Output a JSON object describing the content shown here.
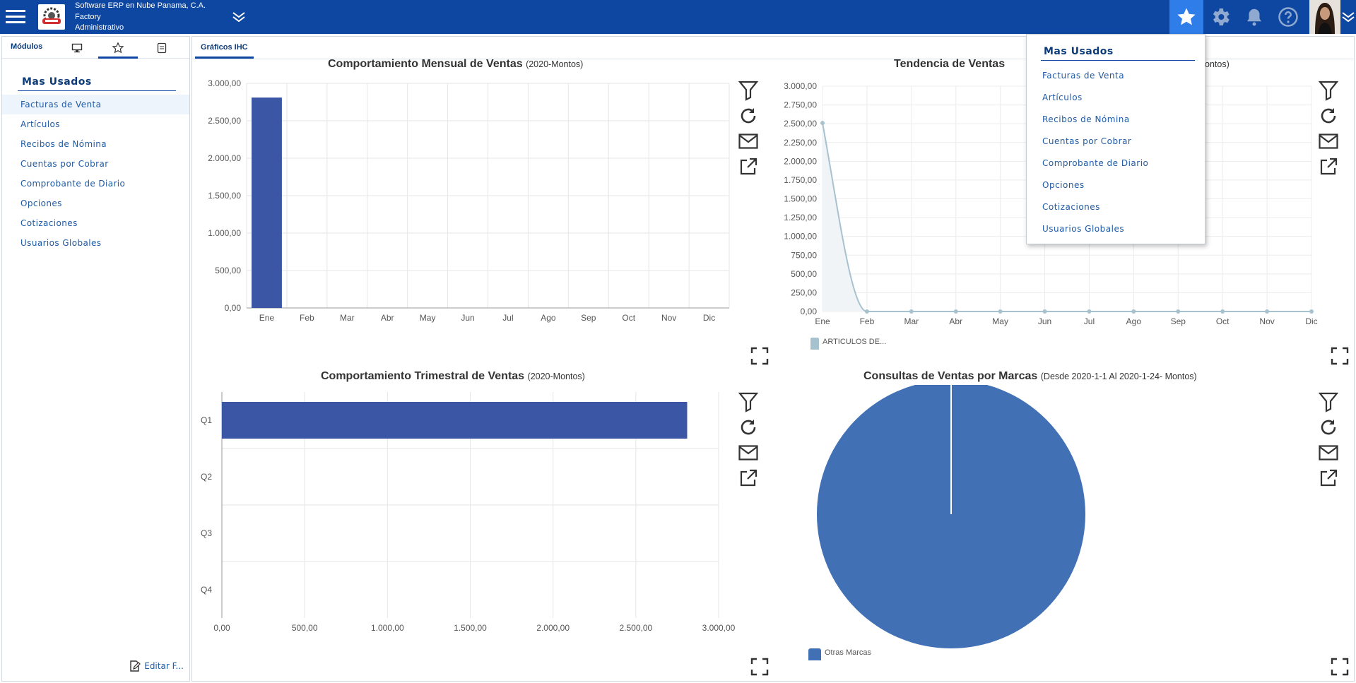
{
  "header": {
    "company_line1": "Software ERP en Nube Panama, C.A.",
    "company_line2": "Factory",
    "company_line3": "Administrativo"
  },
  "sidebar": {
    "tab_modules_label": "Módulos",
    "section_title": "Mas Usados",
    "items": [
      {
        "label": "Facturas de Venta"
      },
      {
        "label": "Artículos"
      },
      {
        "label": "Recibos de Nómina"
      },
      {
        "label": "Cuentas por Cobrar"
      },
      {
        "label": "Comprobante de Diario"
      },
      {
        "label": "Opciones"
      },
      {
        "label": "Cotizaciones"
      },
      {
        "label": "Usuarios Globales"
      }
    ],
    "footer_label": "Editar F..."
  },
  "main": {
    "tab_label": "Gráficos IHC"
  },
  "dropdown": {
    "title": "Mas Usados",
    "items": [
      {
        "label": "Facturas de Venta"
      },
      {
        "label": "Artículos"
      },
      {
        "label": "Recibos de Nómina"
      },
      {
        "label": "Cuentas por Cobrar"
      },
      {
        "label": "Comprobante de Diario"
      },
      {
        "label": "Opciones"
      },
      {
        "label": "Cotizaciones"
      },
      {
        "label": "Usuarios Globales"
      }
    ]
  },
  "colors": {
    "topbar": "#0d47a1",
    "bar": "#3a56a5",
    "line": "#a7c2cf",
    "pie": "#4170b5"
  },
  "chart_data": [
    {
      "type": "bar",
      "title": "Comportamiento Mensual de Ventas",
      "subtitle": "(2020-Montos)",
      "categories": [
        "Ene",
        "Feb",
        "Mar",
        "Abr",
        "May",
        "Jun",
        "Jul",
        "Ago",
        "Sep",
        "Oct",
        "Nov",
        "Dic"
      ],
      "values": [
        2810,
        0,
        0,
        0,
        0,
        0,
        0,
        0,
        0,
        0,
        0,
        0
      ],
      "ylim": [
        0,
        3000
      ],
      "yticks": [
        "0,00",
        "500,00",
        "1.000,00",
        "1.500,00",
        "2.000,00",
        "2.500,00",
        "3.000,00"
      ],
      "grid": true
    },
    {
      "type": "area",
      "title": "Tendencia de Ventas",
      "subtitle_tail": "ontos)",
      "categories": [
        "Ene",
        "Feb",
        "Mar",
        "Abr",
        "May",
        "Jun",
        "Jul",
        "Ago",
        "Sep",
        "Oct",
        "Nov",
        "Dic"
      ],
      "series": [
        {
          "name": "ARTICULOS DE...",
          "values": [
            2510,
            0,
            0,
            0,
            0,
            0,
            0,
            0,
            0,
            0,
            0,
            0
          ]
        }
      ],
      "ylim": [
        0,
        3000
      ],
      "yticks": [
        "0,00",
        "250,00",
        "500,00",
        "750,00",
        "1.000,00",
        "1.250,00",
        "1.500,00",
        "1.750,00",
        "2.000,00",
        "2.250,00",
        "2.500,00",
        "2.750,00",
        "3.000,00"
      ],
      "grid": true,
      "legend": "bottom-left"
    },
    {
      "type": "bar",
      "orientation": "horizontal",
      "title": "Comportamiento Trimestral de Ventas",
      "subtitle": "(2020-Montos)",
      "categories": [
        "Q1",
        "Q2",
        "Q3",
        "Q4"
      ],
      "values": [
        2810,
        0,
        0,
        0
      ],
      "xlim": [
        0,
        3000
      ],
      "xticks": [
        "0,00",
        "500,00",
        "1.000,00",
        "1.500,00",
        "2.000,00",
        "2.500,00",
        "3.000,00"
      ],
      "grid": true
    },
    {
      "type": "pie",
      "title": "Consultas de Ventas por Marcas",
      "subtitle": "(Desde 2020-1-1 Al 2020-1-24- Montos)",
      "slices": [
        {
          "label": "Otras Marcas",
          "value": 100
        }
      ],
      "legend": "bottom-left"
    }
  ]
}
